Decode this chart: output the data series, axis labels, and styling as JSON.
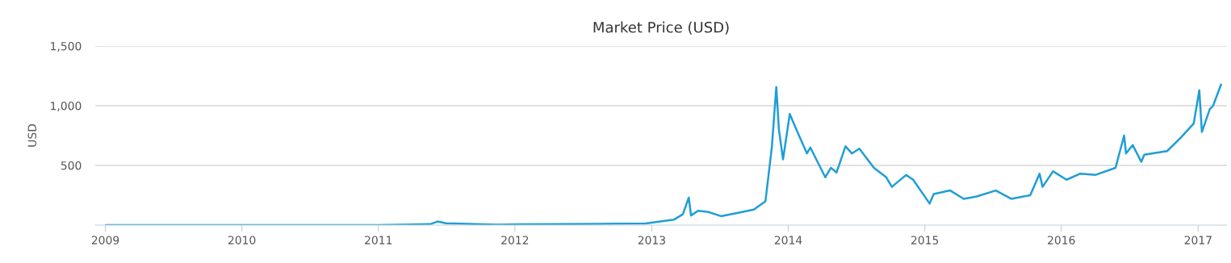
{
  "chart_data": {
    "type": "line",
    "title": "Market Price (USD)",
    "ylabel": "USD",
    "x": [
      "2009-01-03",
      "2010-07-01",
      "2011-01-01",
      "2011-05-20",
      "2011-06-08",
      "2011-07-01",
      "2011-11-15",
      "2012-01-15",
      "2012-08-15",
      "2012-12-15",
      "2013-03-01",
      "2013-03-25",
      "2013-04-10",
      "2013-04-16",
      "2013-05-05",
      "2013-06-01",
      "2013-07-05",
      "2013-08-15",
      "2013-10-01",
      "2013-11-01",
      "2013-11-18",
      "2013-11-30",
      "2013-12-07",
      "2013-12-18",
      "2014-01-05",
      "2014-01-20",
      "2014-02-20",
      "2014-03-01",
      "2014-04-10",
      "2014-04-25",
      "2014-05-10",
      "2014-06-03",
      "2014-06-20",
      "2014-07-10",
      "2014-08-18",
      "2014-09-20",
      "2014-10-05",
      "2014-11-12",
      "2014-12-01",
      "2015-01-14",
      "2015-01-25",
      "2015-03-10",
      "2015-04-15",
      "2015-05-20",
      "2015-07-10",
      "2015-08-20",
      "2015-10-10",
      "2015-11-04",
      "2015-11-12",
      "2015-12-10",
      "2016-01-15",
      "2016-02-20",
      "2016-04-01",
      "2016-05-25",
      "2016-06-17",
      "2016-06-22",
      "2016-07-10",
      "2016-08-02",
      "2016-08-10",
      "2016-10-10",
      "2016-11-15",
      "2016-12-20",
      "2017-01-04",
      "2017-01-11",
      "2017-02-01",
      "2017-02-10",
      "2017-03-03"
    ],
    "series": [
      {
        "color": "#1f9ed6",
        "values": [
          0,
          0,
          0,
          8,
          30,
          15,
          3,
          6,
          10,
          13,
          45,
          90,
          230,
          80,
          120,
          110,
          75,
          100,
          130,
          200,
          650,
          1156,
          800,
          550,
          930,
          820,
          600,
          650,
          400,
          480,
          440,
          660,
          600,
          640,
          480,
          400,
          320,
          420,
          380,
          180,
          260,
          290,
          220,
          240,
          290,
          220,
          250,
          430,
          320,
          450,
          380,
          430,
          420,
          480,
          750,
          600,
          670,
          530,
          590,
          620,
          730,
          850,
          1129,
          780,
          970,
          1000,
          1176
        ]
      }
    ],
    "xlim": [
      "2008-12-05",
      "2017-03-19"
    ],
    "xticks": [
      {
        "value": "2009-01-01",
        "label": "2009"
      },
      {
        "value": "2010-01-01",
        "label": "2010"
      },
      {
        "value": "2011-01-01",
        "label": "2011"
      },
      {
        "value": "2012-01-01",
        "label": "2012"
      },
      {
        "value": "2013-01-01",
        "label": "2013"
      },
      {
        "value": "2014-01-01",
        "label": "2014"
      },
      {
        "value": "2015-01-01",
        "label": "2015"
      },
      {
        "value": "2016-01-01",
        "label": "2016"
      },
      {
        "value": "2017-01-01",
        "label": "2017"
      }
    ],
    "ylim": [
      0,
      1500
    ],
    "yticks": [
      {
        "value": 500,
        "label": "500"
      },
      {
        "value": 1000,
        "label": "1,000"
      },
      {
        "value": 1500,
        "label": "1,500"
      }
    ],
    "grid": "y",
    "legend": false,
    "marker": "none",
    "line_style": "solid"
  }
}
